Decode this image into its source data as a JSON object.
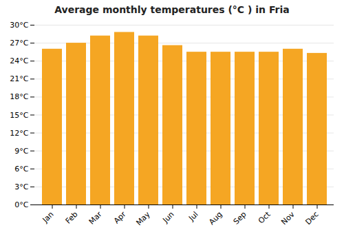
{
  "chart_data": {
    "type": "bar",
    "title": "Average monthly temperatures (°C ) in Fria",
    "categories": [
      "Jan",
      "Feb",
      "Mar",
      "Apr",
      "May",
      "Jun",
      "Jul",
      "Aug",
      "Sep",
      "Oct",
      "Nov",
      "Dec"
    ],
    "values": [
      26.0,
      27.0,
      28.2,
      28.8,
      28.2,
      26.6,
      25.5,
      25.5,
      25.5,
      25.5,
      26.0,
      25.3
    ],
    "color": "#F5A623",
    "ylim": [
      0,
      30
    ],
    "yticks": [
      {
        "value": 0,
        "label": "0°C"
      },
      {
        "value": 3,
        "label": "3°C"
      },
      {
        "value": 6,
        "label": "6°C"
      },
      {
        "value": 9,
        "label": "9°C"
      },
      {
        "value": 12,
        "label": "12°C"
      },
      {
        "value": 15,
        "label": "15°C"
      },
      {
        "value": 18,
        "label": "18°C"
      },
      {
        "value": 21,
        "label": "21°C"
      },
      {
        "value": 24,
        "label": "24°C"
      },
      {
        "value": 27,
        "label": "27°C"
      },
      {
        "value": 30,
        "label": "30°C"
      }
    ],
    "grid": true
  }
}
